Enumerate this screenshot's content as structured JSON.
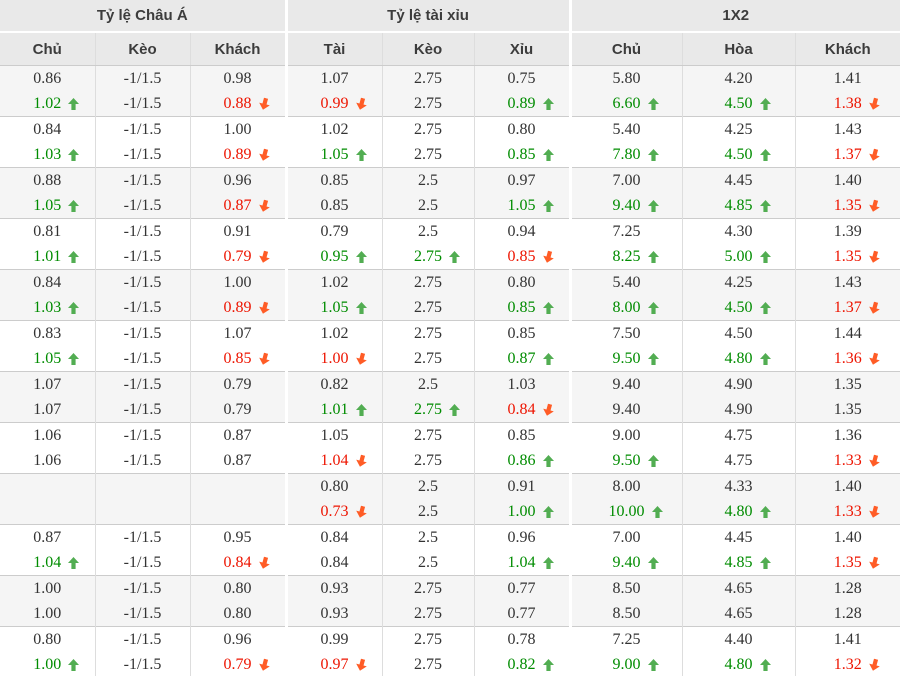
{
  "colors": {
    "header_bg": "#e9e9e9",
    "header_text": "#3c3c3c",
    "row_alt_bg": "#f5f5f5",
    "border": "#dddddd",
    "group_border": "#cccccc",
    "text": "#333333",
    "up_text": "#008c00",
    "down_text": "#ed1400",
    "up_arrow": "#52ad52",
    "down_arrow": "#ff5c26"
  },
  "table": {
    "groups": [
      {
        "label": "Tỷ lệ Châu Á",
        "columns": [
          "Chủ",
          "Kèo",
          "Khách"
        ]
      },
      {
        "label": "Tỷ lệ tài xỉu",
        "columns": [
          "Tài",
          "Kèo",
          "Xỉu"
        ]
      },
      {
        "label": "1X2",
        "columns": [
          "Chủ",
          "Hòa",
          "Khách"
        ]
      }
    ],
    "rows": [
      {
        "line1": [
          "0.86",
          "-1/1.5",
          "0.98",
          "1.07",
          "2.75",
          "0.75",
          "5.80",
          "4.20",
          "1.41"
        ],
        "line2": [
          {
            "v": "1.02",
            "t": "up"
          },
          "-1/1.5",
          {
            "v": "0.88",
            "t": "down"
          },
          {
            "v": "0.99",
            "t": "down"
          },
          "2.75",
          {
            "v": "0.89",
            "t": "up"
          },
          {
            "v": "6.60",
            "t": "up"
          },
          {
            "v": "4.50",
            "t": "up"
          },
          {
            "v": "1.38",
            "t": "down"
          }
        ]
      },
      {
        "line1": [
          "0.84",
          "-1/1.5",
          "1.00",
          "1.02",
          "2.75",
          "0.80",
          "5.40",
          "4.25",
          "1.43"
        ],
        "line2": [
          {
            "v": "1.03",
            "t": "up"
          },
          "-1/1.5",
          {
            "v": "0.89",
            "t": "down"
          },
          {
            "v": "1.05",
            "t": "up"
          },
          "2.75",
          {
            "v": "0.85",
            "t": "up"
          },
          {
            "v": "7.80",
            "t": "up"
          },
          {
            "v": "4.50",
            "t": "up"
          },
          {
            "v": "1.37",
            "t": "down"
          }
        ]
      },
      {
        "line1": [
          "0.88",
          "-1/1.5",
          "0.96",
          "0.85",
          "2.5",
          "0.97",
          "7.00",
          "4.45",
          "1.40"
        ],
        "line2": [
          {
            "v": "1.05",
            "t": "up"
          },
          "-1/1.5",
          {
            "v": "0.87",
            "t": "down"
          },
          "0.85",
          "2.5",
          {
            "v": "1.05",
            "t": "up"
          },
          {
            "v": "9.40",
            "t": "up"
          },
          {
            "v": "4.85",
            "t": "up"
          },
          {
            "v": "1.35",
            "t": "down"
          }
        ]
      },
      {
        "line1": [
          "0.81",
          "-1/1.5",
          "0.91",
          "0.79",
          "2.5",
          "0.94",
          "7.25",
          "4.30",
          "1.39"
        ],
        "line2": [
          {
            "v": "1.01",
            "t": "up"
          },
          "-1/1.5",
          {
            "v": "0.79",
            "t": "down"
          },
          {
            "v": "0.95",
            "t": "up"
          },
          {
            "v": "2.75",
            "t": "up"
          },
          {
            "v": "0.85",
            "t": "down"
          },
          {
            "v": "8.25",
            "t": "up"
          },
          {
            "v": "5.00",
            "t": "up"
          },
          {
            "v": "1.35",
            "t": "down"
          }
        ]
      },
      {
        "line1": [
          "0.84",
          "-1/1.5",
          "1.00",
          "1.02",
          "2.75",
          "0.80",
          "5.40",
          "4.25",
          "1.43"
        ],
        "line2": [
          {
            "v": "1.03",
            "t": "up"
          },
          "-1/1.5",
          {
            "v": "0.89",
            "t": "down"
          },
          {
            "v": "1.05",
            "t": "up"
          },
          "2.75",
          {
            "v": "0.85",
            "t": "up"
          },
          {
            "v": "8.00",
            "t": "up"
          },
          {
            "v": "4.50",
            "t": "up"
          },
          {
            "v": "1.37",
            "t": "down"
          }
        ]
      },
      {
        "line1": [
          "0.83",
          "-1/1.5",
          "1.07",
          "1.02",
          "2.75",
          "0.85",
          "7.50",
          "4.50",
          "1.44"
        ],
        "line2": [
          {
            "v": "1.05",
            "t": "up"
          },
          "-1/1.5",
          {
            "v": "0.85",
            "t": "down"
          },
          {
            "v": "1.00",
            "t": "down"
          },
          "2.75",
          {
            "v": "0.87",
            "t": "up"
          },
          {
            "v": "9.50",
            "t": "up"
          },
          {
            "v": "4.80",
            "t": "up"
          },
          {
            "v": "1.36",
            "t": "down"
          }
        ]
      },
      {
        "line1": [
          "1.07",
          "-1/1.5",
          "0.79",
          "0.82",
          "2.5",
          "1.03",
          "9.40",
          "4.90",
          "1.35"
        ],
        "line2": [
          "1.07",
          "-1/1.5",
          "0.79",
          {
            "v": "1.01",
            "t": "up"
          },
          {
            "v": "2.75",
            "t": "up"
          },
          {
            "v": "0.84",
            "t": "down"
          },
          "9.40",
          "4.90",
          "1.35"
        ]
      },
      {
        "line1": [
          "1.06",
          "-1/1.5",
          "0.87",
          "1.05",
          "2.75",
          "0.85",
          "9.00",
          "4.75",
          "1.36"
        ],
        "line2": [
          "1.06",
          "-1/1.5",
          "0.87",
          {
            "v": "1.04",
            "t": "down"
          },
          "2.75",
          {
            "v": "0.86",
            "t": "up"
          },
          {
            "v": "9.50",
            "t": "up"
          },
          "4.75",
          {
            "v": "1.33",
            "t": "down"
          }
        ]
      },
      {
        "line1": [
          "",
          "",
          "",
          "0.80",
          "2.5",
          "0.91",
          "8.00",
          "4.33",
          "1.40"
        ],
        "line2": [
          "",
          "",
          "",
          {
            "v": "0.73",
            "t": "down"
          },
          "2.5",
          {
            "v": "1.00",
            "t": "up"
          },
          {
            "v": "10.00",
            "t": "up"
          },
          {
            "v": "4.80",
            "t": "up"
          },
          {
            "v": "1.33",
            "t": "down"
          }
        ]
      },
      {
        "line1": [
          "0.87",
          "-1/1.5",
          "0.95",
          "0.84",
          "2.5",
          "0.96",
          "7.00",
          "4.45",
          "1.40"
        ],
        "line2": [
          {
            "v": "1.04",
            "t": "up"
          },
          "-1/1.5",
          {
            "v": "0.84",
            "t": "down"
          },
          "0.84",
          "2.5",
          {
            "v": "1.04",
            "t": "up"
          },
          {
            "v": "9.40",
            "t": "up"
          },
          {
            "v": "4.85",
            "t": "up"
          },
          {
            "v": "1.35",
            "t": "down"
          }
        ]
      },
      {
        "line1": [
          "1.00",
          "-1/1.5",
          "0.80",
          "0.93",
          "2.75",
          "0.77",
          "8.50",
          "4.65",
          "1.28"
        ],
        "line2": [
          "1.00",
          "-1/1.5",
          "0.80",
          "0.93",
          "2.75",
          "0.77",
          "8.50",
          "4.65",
          "1.28"
        ]
      },
      {
        "line1": [
          "0.80",
          "-1/1.5",
          "0.96",
          "0.99",
          "2.75",
          "0.78",
          "7.25",
          "4.40",
          "1.41"
        ],
        "line2": [
          {
            "v": "1.00",
            "t": "up"
          },
          "-1/1.5",
          {
            "v": "0.79",
            "t": "down"
          },
          {
            "v": "0.97",
            "t": "down"
          },
          "2.75",
          {
            "v": "0.82",
            "t": "up"
          },
          {
            "v": "9.00",
            "t": "up"
          },
          {
            "v": "4.80",
            "t": "up"
          },
          {
            "v": "1.32",
            "t": "down"
          }
        ]
      }
    ]
  }
}
